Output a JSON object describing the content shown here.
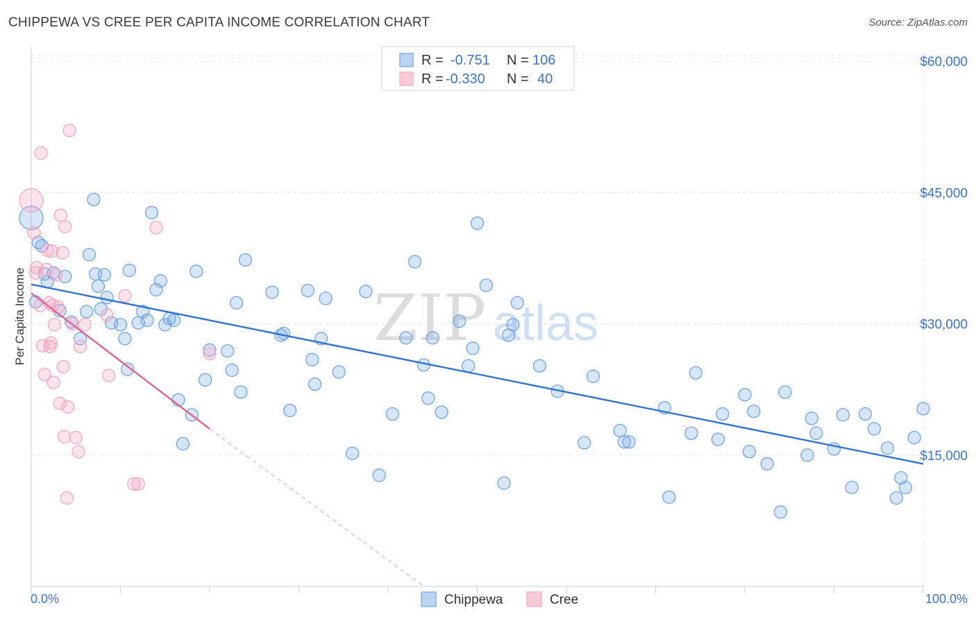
{
  "title": "CHIPPEWA VS CREE PER CAPITA INCOME CORRELATION CHART",
  "source": "Source: ZipAtlas.com",
  "watermark": {
    "zip": "ZIP",
    "atlas": "atlas"
  },
  "chart_data": {
    "type": "scatter",
    "ylabel": "Per Capita Income",
    "xlim": [
      0,
      100
    ],
    "ylim": [
      0,
      62000
    ],
    "x_tick_labels": [
      "0.0%",
      "100.0%"
    ],
    "y_ticks": [
      {
        "value": 15000,
        "label": "$15,000"
      },
      {
        "value": 30000,
        "label": "$30,000"
      },
      {
        "value": 45000,
        "label": "$45,000"
      },
      {
        "value": 60000,
        "label": "$60,000"
      }
    ],
    "grid": true,
    "legend_position": "top-center",
    "series": [
      {
        "name": "Chippewa",
        "color": "#6fa3e8",
        "line_color": "#2f72d1",
        "R": "-0.751",
        "N": "106",
        "trend": {
          "x": [
            0,
            100
          ],
          "y": [
            34500,
            14000
          ]
        },
        "points": [
          [
            0.0,
            42100
          ],
          [
            0.8,
            39300
          ],
          [
            1.2,
            38900
          ],
          [
            1.5,
            35700
          ],
          [
            1.8,
            34800
          ],
          [
            2.5,
            35800
          ],
          [
            3.2,
            31500
          ],
          [
            3.8,
            35400
          ],
          [
            4.5,
            30200
          ],
          [
            5.5,
            28300
          ],
          [
            6.2,
            31400
          ],
          [
            6.5,
            37900
          ],
          [
            7.0,
            44200
          ],
          [
            7.2,
            35700
          ],
          [
            7.5,
            34300
          ],
          [
            7.8,
            31700
          ],
          [
            8.2,
            35600
          ],
          [
            8.5,
            33000
          ],
          [
            9.0,
            30100
          ],
          [
            10.0,
            29900
          ],
          [
            10.5,
            28300
          ],
          [
            10.8,
            24800
          ],
          [
            11.0,
            36100
          ],
          [
            12.0,
            30100
          ],
          [
            12.5,
            31400
          ],
          [
            13.0,
            30400
          ],
          [
            13.5,
            42700
          ],
          [
            14.0,
            33900
          ],
          [
            14.5,
            34900
          ],
          [
            15.0,
            29900
          ],
          [
            15.5,
            30600
          ],
          [
            16.0,
            30400
          ],
          [
            16.5,
            21300
          ],
          [
            17.0,
            16300
          ],
          [
            18.0,
            19600
          ],
          [
            18.5,
            36000
          ],
          [
            19.5,
            23600
          ],
          [
            20.0,
            27000
          ],
          [
            22.0,
            26900
          ],
          [
            22.5,
            24700
          ],
          [
            23.0,
            32400
          ],
          [
            23.5,
            22200
          ],
          [
            24.0,
            37300
          ],
          [
            27.0,
            33600
          ],
          [
            28.0,
            28700
          ],
          [
            28.3,
            28900
          ],
          [
            29.0,
            20100
          ],
          [
            31.0,
            33800
          ],
          [
            31.5,
            25900
          ],
          [
            31.8,
            23100
          ],
          [
            32.5,
            28300
          ],
          [
            33.0,
            32900
          ],
          [
            34.5,
            24500
          ],
          [
            36.0,
            15200
          ],
          [
            37.5,
            33700
          ],
          [
            39.0,
            12700
          ],
          [
            40.5,
            19700
          ],
          [
            42.0,
            28400
          ],
          [
            43.0,
            37100
          ],
          [
            44.0,
            25300
          ],
          [
            44.5,
            21500
          ],
          [
            45.0,
            28400
          ],
          [
            46.0,
            19900
          ],
          [
            48.0,
            30300
          ],
          [
            49.0,
            25200
          ],
          [
            49.5,
            27200
          ],
          [
            50.0,
            41500
          ],
          [
            51.0,
            34400
          ],
          [
            53.0,
            11800
          ],
          [
            53.5,
            28700
          ],
          [
            54.0,
            29900
          ],
          [
            54.5,
            32400
          ],
          [
            57.0,
            25200
          ],
          [
            59.0,
            22300
          ],
          [
            62.0,
            16400
          ],
          [
            63.0,
            24000
          ],
          [
            66.0,
            17800
          ],
          [
            66.5,
            16500
          ],
          [
            67.0,
            16500
          ],
          [
            71.0,
            20400
          ],
          [
            71.5,
            10200
          ],
          [
            74.0,
            17500
          ],
          [
            74.5,
            24400
          ],
          [
            77.0,
            16800
          ],
          [
            77.5,
            19700
          ],
          [
            80.0,
            21900
          ],
          [
            80.5,
            15400
          ],
          [
            81.0,
            20000
          ],
          [
            82.5,
            14000
          ],
          [
            84.0,
            8500
          ],
          [
            84.5,
            22200
          ],
          [
            87.0,
            15000
          ],
          [
            87.5,
            19200
          ],
          [
            88.0,
            17500
          ],
          [
            90.0,
            15700
          ],
          [
            91.0,
            19600
          ],
          [
            92.0,
            11300
          ],
          [
            93.5,
            19700
          ],
          [
            94.5,
            18000
          ],
          [
            96.0,
            15800
          ],
          [
            97.0,
            10100
          ],
          [
            97.5,
            12400
          ],
          [
            98.0,
            11300
          ],
          [
            99.0,
            17000
          ],
          [
            100.0,
            20300
          ],
          [
            0.5,
            32500
          ]
        ]
      },
      {
        "name": "Cree",
        "color": "#f4a6bf",
        "line_color": "#e0618e",
        "R": "-0.330",
        "N": "40",
        "trend": {
          "x": [
            0,
            20
          ],
          "y": [
            33500,
            18000
          ]
        },
        "trend_dashed": {
          "x": [
            20,
            44
          ],
          "y": [
            18000,
            0
          ]
        },
        "points": [
          [
            0.0,
            44100
          ],
          [
            0.3,
            40400
          ],
          [
            0.5,
            35800
          ],
          [
            0.6,
            36400
          ],
          [
            1.0,
            32100
          ],
          [
            1.1,
            49500
          ],
          [
            1.3,
            27500
          ],
          [
            1.5,
            24200
          ],
          [
            1.7,
            36200
          ],
          [
            1.8,
            38400
          ],
          [
            2.0,
            32400
          ],
          [
            2.1,
            27400
          ],
          [
            2.2,
            27800
          ],
          [
            2.4,
            32100
          ],
          [
            2.5,
            23300
          ],
          [
            2.6,
            29900
          ],
          [
            2.8,
            35600
          ],
          [
            3.0,
            31900
          ],
          [
            3.2,
            20900
          ],
          [
            3.3,
            42400
          ],
          [
            3.5,
            38100
          ],
          [
            3.6,
            25100
          ],
          [
            3.7,
            17100
          ],
          [
            3.8,
            41100
          ],
          [
            4.0,
            10100
          ],
          [
            4.1,
            20500
          ],
          [
            4.3,
            52100
          ],
          [
            4.6,
            30000
          ],
          [
            5.0,
            17000
          ],
          [
            5.3,
            15400
          ],
          [
            5.5,
            27400
          ],
          [
            6.0,
            29900
          ],
          [
            8.5,
            31000
          ],
          [
            8.7,
            24100
          ],
          [
            10.5,
            33200
          ],
          [
            11.5,
            11700
          ],
          [
            12.0,
            11700
          ],
          [
            14.0,
            41000
          ],
          [
            20.0,
            26600
          ],
          [
            2.3,
            38300
          ]
        ]
      }
    ]
  }
}
